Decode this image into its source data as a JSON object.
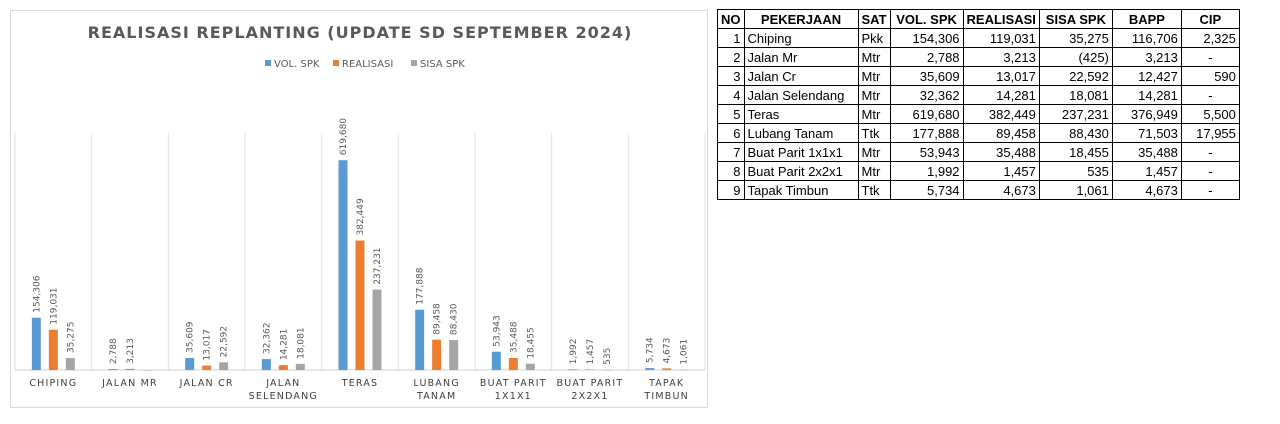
{
  "chart_data": {
    "type": "bar",
    "title": "REALISASI REPLANTING (UPDATE SD SEPTEMBER 2024)",
    "legend_position": "top-center",
    "grid": false,
    "categories": [
      [
        "CHIPING"
      ],
      [
        "JALAN MR"
      ],
      [
        "JALAN CR"
      ],
      [
        "JALAN",
        "SELENDANG"
      ],
      [
        "TERAS"
      ],
      [
        "LUBANG",
        "TANAM"
      ],
      [
        "BUAT PARIT",
        "1X1X1"
      ],
      [
        "BUAT PARIT",
        "2X2X1"
      ],
      [
        "TAPAK",
        "TIMBUN"
      ]
    ],
    "series": [
      {
        "name": "VOL. SPK",
        "color": "#5b9bd5",
        "values": [
          154306,
          2788,
          35609,
          32362,
          619680,
          177888,
          53943,
          1992,
          5734
        ],
        "labels": [
          "154,306",
          "2,788",
          "35,609",
          "32,362",
          "619,680",
          "177,888",
          "53,943",
          "1,992",
          "5,734"
        ]
      },
      {
        "name": "REALISASI",
        "color": "#ed7d31",
        "values": [
          119031,
          3213,
          13017,
          14281,
          382449,
          89458,
          35488,
          1457,
          4673
        ],
        "labels": [
          "119,031",
          "3,213",
          "13,017",
          "14,281",
          "382,449",
          "89,458",
          "35,488",
          "1,457",
          "4,673"
        ]
      },
      {
        "name": "SISA SPK",
        "color": "#a5a5a5",
        "values": [
          35275,
          -425,
          22592,
          18081,
          237231,
          88430,
          18455,
          535,
          1061
        ],
        "labels": [
          "35,275",
          "",
          "22,592",
          "18,081",
          "237,231",
          "88,430",
          "18,455",
          "535",
          "1,061"
        ]
      }
    ],
    "ylim": [
      0,
      700000
    ]
  },
  "table": {
    "headers": [
      "NO",
      "PEKERJAAN",
      "SAT",
      "VOL. SPK",
      "REALISASI",
      "SISA SPK",
      "BAPP",
      "CIP"
    ],
    "rows": [
      [
        "1",
        "Chiping",
        "Pkk",
        "154,306",
        "119,031",
        "35,275",
        "116,706",
        "2,325"
      ],
      [
        "2",
        "Jalan Mr",
        "Mtr",
        "2,788",
        "3,213",
        "(425)",
        "3,213",
        "-"
      ],
      [
        "3",
        "Jalan Cr",
        "Mtr",
        "35,609",
        "13,017",
        "22,592",
        "12,427",
        "590"
      ],
      [
        "4",
        "Jalan Selendang",
        "Mtr",
        "32,362",
        "14,281",
        "18,081",
        "14,281",
        "-"
      ],
      [
        "5",
        "Teras",
        "Mtr",
        "619,680",
        "382,449",
        "237,231",
        "376,949",
        "5,500"
      ],
      [
        "6",
        "Lubang Tanam",
        "Ttk",
        "177,888",
        "89,458",
        "88,430",
        "71,503",
        "17,955"
      ],
      [
        "7",
        "Buat Parit 1x1x1",
        "Mtr",
        "53,943",
        "35,488",
        "18,455",
        "35,488",
        "-"
      ],
      [
        "8",
        "Buat Parit 2x2x1",
        "Mtr",
        "1,992",
        "1,457",
        "535",
        "1,457",
        "-"
      ],
      [
        "9",
        "Tapak Timbun",
        "Ttk",
        "5,734",
        "4,673",
        "1,061",
        "4,673",
        "-"
      ]
    ]
  }
}
